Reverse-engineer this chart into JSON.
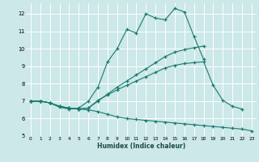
{
  "xlabel": "Humidex (Indice chaleur)",
  "bg_color": "#cce8e8",
  "line_color": "#1a7a6e",
  "grid_color": "#ffffff",
  "xlim": [
    -0.5,
    23.5
  ],
  "ylim": [
    5,
    12.6
  ],
  "yticks": [
    5,
    6,
    7,
    8,
    9,
    10,
    11,
    12
  ],
  "xticks": [
    0,
    1,
    2,
    3,
    4,
    5,
    6,
    7,
    8,
    9,
    10,
    11,
    12,
    13,
    14,
    15,
    16,
    17,
    18,
    19,
    20,
    21,
    22,
    23
  ],
  "line1_x": [
    0,
    1,
    2,
    3,
    4,
    5,
    6,
    7,
    8,
    9,
    10,
    11,
    12,
    13,
    14,
    15,
    16,
    17,
    18
  ],
  "line1_y": [
    7.0,
    7.0,
    6.9,
    6.65,
    6.55,
    6.6,
    7.0,
    7.8,
    9.25,
    10.0,
    11.1,
    10.9,
    12.0,
    11.75,
    11.65,
    12.3,
    12.1,
    10.7,
    9.4
  ],
  "line2_x": [
    0,
    1,
    2,
    3,
    4,
    5,
    6,
    7,
    8,
    9,
    10,
    11,
    12,
    13,
    14,
    15,
    16,
    17,
    18,
    19,
    20,
    21,
    22
  ],
  "line2_y": [
    7.0,
    7.0,
    6.9,
    6.7,
    6.6,
    6.55,
    6.6,
    7.05,
    7.35,
    7.65,
    7.9,
    8.15,
    8.4,
    8.65,
    8.9,
    9.05,
    9.15,
    9.2,
    9.25,
    7.9,
    7.05,
    6.7,
    6.55
  ],
  "line3_x": [
    0,
    1,
    2,
    3,
    4,
    5,
    6,
    7,
    8,
    9,
    10,
    11,
    12,
    13,
    14,
    15,
    16,
    17,
    18,
    19,
    20,
    21,
    22,
    23
  ],
  "line3_y": [
    7.0,
    7.0,
    6.9,
    6.7,
    6.6,
    6.55,
    6.6,
    7.0,
    7.4,
    7.8,
    8.15,
    8.5,
    8.85,
    9.2,
    9.55,
    9.8,
    9.95,
    10.05,
    10.15,
    null,
    null,
    null,
    null,
    null
  ],
  "line4_x": [
    0,
    1,
    2,
    3,
    4,
    5,
    6,
    7,
    8,
    9,
    10,
    11,
    12,
    13,
    14,
    15,
    16,
    17,
    18,
    19,
    20,
    21,
    22,
    23
  ],
  "line4_y": [
    7.0,
    7.0,
    6.9,
    6.7,
    6.6,
    6.55,
    6.5,
    6.4,
    6.25,
    6.1,
    6.0,
    5.95,
    5.9,
    5.85,
    5.8,
    5.75,
    5.7,
    5.65,
    5.6,
    5.55,
    5.5,
    5.45,
    5.4,
    5.3
  ]
}
